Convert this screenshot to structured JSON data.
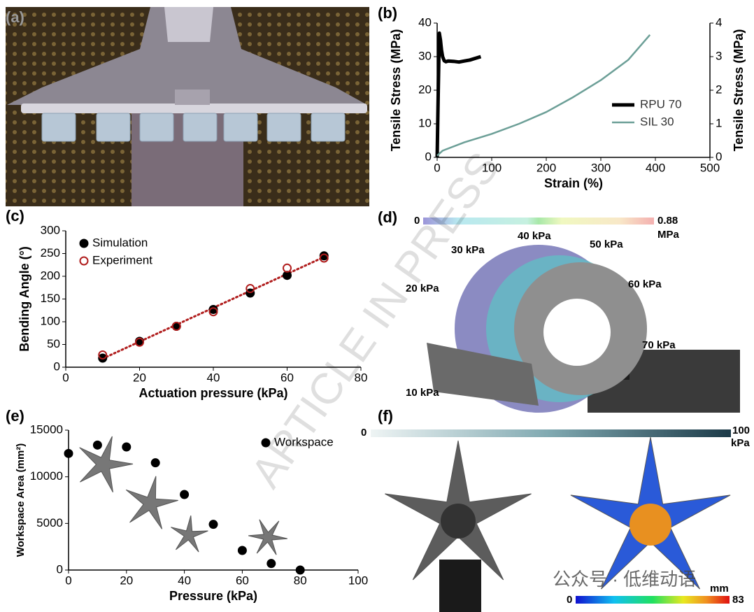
{
  "panel_labels": [
    "(a)",
    "(b)",
    "(c)",
    "(d)",
    "(e)",
    "(f)"
  ],
  "chart_data": [
    {
      "type": "line",
      "xlabel": "Strain (%)",
      "ylabel": "Tensile Stress (MPa)",
      "y2label": "Tensile Stress (MPa)",
      "xlim": [
        0,
        500
      ],
      "xticks": [
        0,
        100,
        200,
        300,
        400,
        500
      ],
      "ylim": [
        0,
        40
      ],
      "yticks": [
        0,
        10,
        20,
        30,
        40
      ],
      "y2lim": [
        0,
        4
      ],
      "y2ticks": [
        0,
        1,
        2,
        3,
        4
      ],
      "legend": "lower right",
      "series": [
        {
          "name": "RPU 70",
          "color": "#000000",
          "width": 5,
          "x": [
            0,
            2,
            4,
            6,
            8,
            10,
            13,
            16,
            20,
            30,
            40,
            50,
            60,
            70,
            80
          ],
          "values": [
            0,
            20,
            37,
            35,
            32,
            30,
            28.8,
            28.5,
            28.7,
            28.6,
            28.4,
            28.7,
            29,
            29.5,
            30
          ]
        },
        {
          "name": "SIL 30",
          "color": "#6c9f97",
          "width": 2.5,
          "axis": "y2",
          "x": [
            0,
            10,
            50,
            100,
            150,
            200,
            250,
            300,
            350,
            390
          ],
          "values": [
            0.05,
            0.2,
            0.45,
            0.7,
            1.0,
            1.35,
            1.8,
            2.3,
            2.9,
            3.65
          ]
        }
      ]
    },
    {
      "type": "scatter",
      "xlabel": "Actuation pressure (kPa)",
      "ylabel": "Bending Angle (°)",
      "xlim": [
        0,
        80
      ],
      "xticks": [
        0,
        20,
        40,
        60,
        80
      ],
      "ylim": [
        0,
        300
      ],
      "yticks": [
        0,
        50,
        100,
        150,
        200,
        250,
        300
      ],
      "legend": "upper left",
      "trendline": true,
      "trendline_color": "#b01c1c",
      "x": [
        10,
        20,
        30,
        40,
        50,
        60,
        70
      ],
      "series": [
        {
          "name": "Simulation",
          "color": "#000000",
          "marker": "filled",
          "values": [
            20,
            57,
            90,
            127,
            163,
            202,
            245
          ]
        },
        {
          "name": "Experiment",
          "color": "#b01c1c",
          "marker": "open",
          "values": [
            27,
            55,
            90,
            122,
            173,
            218,
            240
          ]
        }
      ]
    },
    {
      "type": "scatter",
      "xlabel": "Pressure (kPa)",
      "ylabel": "Workspace Area (mm²)",
      "xlim": [
        0,
        100
      ],
      "xticks": [
        0,
        20,
        40,
        60,
        80,
        100
      ],
      "ylim": [
        0,
        15000
      ],
      "yticks": [
        0,
        5000,
        10000,
        15000
      ],
      "legend": "upper right",
      "x": [
        0,
        10,
        20,
        30,
        40,
        50,
        60,
        70,
        80
      ],
      "series": [
        {
          "name": "Workspace",
          "color": "#000000",
          "marker": "filled",
          "values": [
            12500,
            13400,
            13200,
            11500,
            8100,
            4900,
            2100,
            700,
            0
          ]
        }
      ]
    }
  ],
  "panel_d": {
    "colorbar_min": 0,
    "colorbar_max": 0.88,
    "colorbar_unit": "MPa",
    "pressures": [
      "10 kPa",
      "20 kPa",
      "30 kPa",
      "40 kPa",
      "50 kPa",
      "60 kPa",
      "70 kPa"
    ]
  },
  "panel_f": {
    "colorbar_min": 0,
    "colorbar_max": 100,
    "colorbar_unit": "kPa",
    "disp_min": 0,
    "disp_max": 83,
    "disp_unit": "mm"
  },
  "watermarks": [
    "ARTICLE IN PRESS",
    "公众号 · 低维动语"
  ]
}
